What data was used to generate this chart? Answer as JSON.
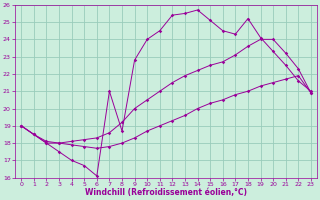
{
  "xlabel": "Windchill (Refroidissement éolien,°C)",
  "bg_color": "#cceedd",
  "grid_color": "#99ccbb",
  "line_color": "#990099",
  "xlim": [
    -0.5,
    23.5
  ],
  "ylim": [
    16,
    26
  ],
  "xticks": [
    0,
    1,
    2,
    3,
    4,
    5,
    6,
    7,
    8,
    9,
    10,
    11,
    12,
    13,
    14,
    15,
    16,
    17,
    18,
    19,
    20,
    21,
    22,
    23
  ],
  "yticks": [
    16,
    17,
    18,
    19,
    20,
    21,
    22,
    23,
    24,
    25,
    26
  ],
  "line1_x": [
    0,
    1,
    2,
    3,
    4,
    5,
    6,
    7,
    8,
    9,
    10,
    11,
    12,
    13,
    14,
    15,
    16,
    17,
    18,
    19,
    20,
    21,
    22,
    23
  ],
  "line1_y": [
    19.0,
    18.5,
    18.1,
    18.0,
    17.9,
    17.8,
    17.7,
    17.8,
    18.0,
    18.3,
    18.7,
    19.0,
    19.3,
    19.6,
    20.0,
    20.3,
    20.5,
    20.8,
    21.0,
    21.3,
    21.5,
    21.7,
    21.9,
    20.9
  ],
  "line2_x": [
    0,
    1,
    2,
    3,
    4,
    5,
    6,
    7,
    8,
    9,
    10,
    11,
    12,
    13,
    14,
    15,
    16,
    17,
    18,
    19,
    20,
    21,
    22,
    23
  ],
  "line2_y": [
    19.0,
    18.5,
    18.0,
    17.5,
    17.0,
    16.7,
    16.1,
    21.0,
    18.7,
    22.8,
    24.0,
    24.5,
    25.4,
    25.5,
    25.7,
    25.1,
    24.5,
    24.3,
    25.2,
    24.1,
    23.3,
    22.5,
    21.6,
    21.0
  ],
  "line3_x": [
    0,
    1,
    2,
    3,
    4,
    5,
    6,
    7,
    8,
    9,
    10,
    11,
    12,
    13,
    14,
    15,
    16,
    17,
    18,
    19,
    20,
    21,
    22,
    23
  ],
  "line3_y": [
    19.0,
    18.5,
    18.0,
    18.0,
    18.1,
    18.2,
    18.3,
    18.6,
    19.2,
    20.0,
    20.5,
    21.0,
    21.5,
    21.9,
    22.2,
    22.5,
    22.7,
    23.1,
    23.6,
    24.0,
    24.0,
    23.2,
    22.3,
    20.9
  ]
}
